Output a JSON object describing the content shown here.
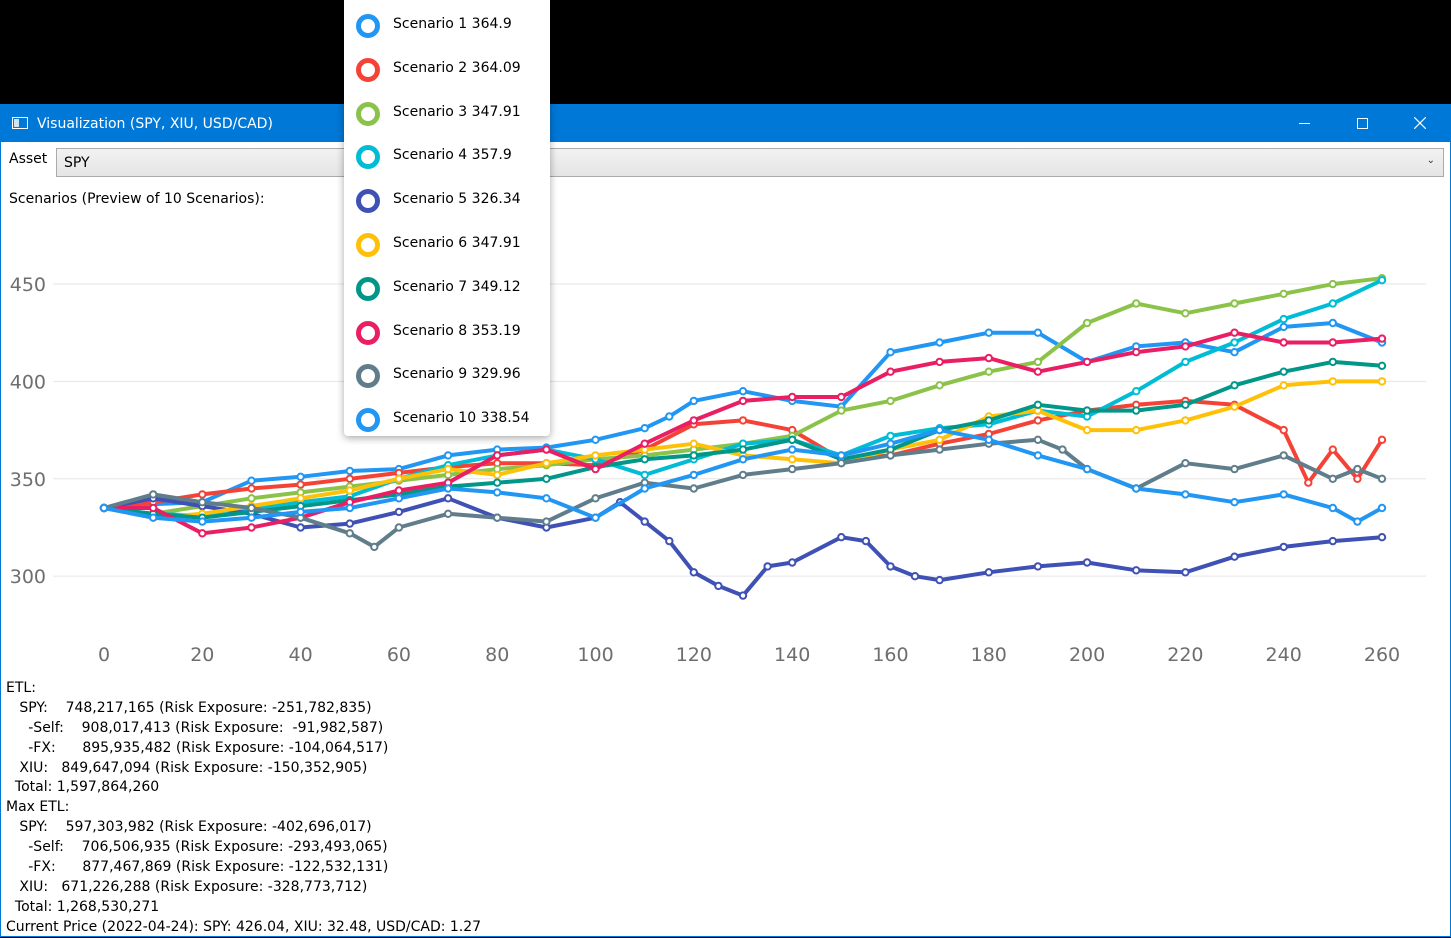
{
  "window": {
    "title": "Visualization (SPY, XIU, USD/CAD)"
  },
  "asset": {
    "label": "Asset",
    "value": "SPY"
  },
  "scenarios_label": "Scenarios (Preview of 10 Scenarios):",
  "legend": [
    {
      "label": "Scenario 1 364.9",
      "color": "#2196f3"
    },
    {
      "label": "Scenario 2 364.09",
      "color": "#f44336"
    },
    {
      "label": "Scenario 3 347.91",
      "color": "#8bc34a"
    },
    {
      "label": "Scenario 4 357.9",
      "color": "#00bcd4"
    },
    {
      "label": "Scenario 5 326.34",
      "color": "#3f51b5"
    },
    {
      "label": "Scenario 6 347.91",
      "color": "#ffc107"
    },
    {
      "label": "Scenario 7 349.12",
      "color": "#009688"
    },
    {
      "label": "Scenario 8 353.19",
      "color": "#e91e63"
    },
    {
      "label": "Scenario 9 329.96",
      "color": "#607d8b"
    },
    {
      "label": "Scenario 10 338.54",
      "color": "#2196f3"
    }
  ],
  "stats": [
    "ETL:",
    "   SPY:    748,217,165 (Risk Exposure: -251,782,835)",
    "     -Self:    908,017,413 (Risk Exposure:  -91,982,587)",
    "     -FX:      895,935,482 (Risk Exposure: -104,064,517)",
    "   XIU:   849,647,094 (Risk Exposure: -150,352,905)",
    "  Total: 1,597,864,260",
    "Max ETL:",
    "   SPY:    597,303,982 (Risk Exposure: -402,696,017)",
    "     -Self:    706,506,935 (Risk Exposure: -293,493,065)",
    "     -FX:      877,467,869 (Risk Exposure: -122,532,131)",
    "   XIU:   671,226,288 (Risk Exposure: -328,773,712)",
    "  Total: 1,268,530,271",
    "Current Price (2022-04-24): SPY: 426.04, XIU: 32.48, USD/CAD: 1.27"
  ],
  "chart_data": {
    "type": "line",
    "x_ticks": [
      0,
      20,
      40,
      60,
      80,
      100,
      120,
      140,
      160,
      180,
      200,
      220,
      240,
      260
    ],
    "y_ticks": [
      300,
      350,
      400,
      450
    ],
    "xlim": [
      0,
      260
    ],
    "ylim": [
      278,
      468
    ],
    "grid": "horizontal",
    "series": [
      {
        "name": "Scenario 1 364.9",
        "color": "#2196f3",
        "x": [
          0,
          10,
          20,
          30,
          40,
          50,
          60,
          70,
          80,
          90,
          100,
          110,
          115,
          120,
          130,
          140,
          150,
          160,
          170,
          180,
          190,
          200,
          210,
          220,
          230,
          240,
          250,
          260
        ],
        "values": [
          335,
          337,
          338,
          349,
          351,
          354,
          355,
          362,
          365,
          366,
          370,
          376,
          382,
          390,
          395,
          390,
          387,
          415,
          420,
          425,
          425,
          410,
          418,
          420,
          415,
          428,
          430,
          420
        ]
      },
      {
        "name": "Scenario 2 364.09",
        "color": "#f44336",
        "x": [
          0,
          10,
          20,
          30,
          40,
          50,
          60,
          70,
          80,
          90,
          100,
          110,
          120,
          130,
          140,
          150,
          160,
          170,
          180,
          190,
          200,
          210,
          220,
          230,
          240,
          245,
          250,
          255,
          260
        ],
        "values": [
          335,
          338,
          342,
          345,
          347,
          350,
          353,
          356,
          358,
          358,
          357,
          365,
          378,
          380,
          375,
          360,
          362,
          368,
          373,
          380,
          385,
          388,
          390,
          388,
          375,
          348,
          365,
          350,
          370
        ]
      },
      {
        "name": "Scenario 3 347.91",
        "color": "#8bc34a",
        "x": [
          0,
          10,
          20,
          30,
          40,
          50,
          60,
          70,
          80,
          90,
          100,
          110,
          120,
          130,
          140,
          150,
          160,
          170,
          180,
          190,
          200,
          210,
          220,
          230,
          240,
          250,
          260
        ],
        "values": [
          335,
          332,
          336,
          340,
          343,
          346,
          349,
          352,
          355,
          357,
          360,
          362,
          365,
          368,
          372,
          385,
          390,
          398,
          405,
          410,
          430,
          440,
          435,
          440,
          445,
          450,
          453
        ]
      },
      {
        "name": "Scenario 4 357.9",
        "color": "#00bcd4",
        "x": [
          0,
          10,
          20,
          30,
          40,
          50,
          60,
          70,
          80,
          90,
          100,
          110,
          120,
          130,
          140,
          150,
          160,
          170,
          180,
          190,
          200,
          210,
          220,
          230,
          240,
          250,
          260
        ],
        "values": [
          335,
          332,
          331,
          335,
          338,
          341,
          350,
          357,
          362,
          365,
          360,
          352,
          360,
          368,
          370,
          362,
          372,
          376,
          378,
          385,
          382,
          395,
          410,
          420,
          432,
          440,
          452
        ]
      },
      {
        "name": "Scenario 5 326.34",
        "color": "#3f51b5",
        "x": [
          0,
          10,
          20,
          30,
          40,
          50,
          60,
          70,
          80,
          90,
          100,
          105,
          110,
          115,
          120,
          125,
          130,
          135,
          140,
          150,
          155,
          160,
          165,
          170,
          180,
          190,
          200,
          210,
          220,
          230,
          240,
          250,
          260
        ],
        "values": [
          335,
          340,
          336,
          332,
          325,
          327,
          333,
          340,
          330,
          325,
          330,
          338,
          328,
          318,
          302,
          295,
          290,
          305,
          307,
          320,
          318,
          305,
          300,
          298,
          302,
          305,
          307,
          303,
          302,
          310,
          315,
          318,
          320
        ]
      },
      {
        "name": "Scenario 6 347.91",
        "color": "#ffc107",
        "x": [
          0,
          10,
          20,
          30,
          40,
          50,
          60,
          70,
          80,
          90,
          100,
          110,
          120,
          130,
          140,
          150,
          160,
          170,
          180,
          190,
          200,
          210,
          220,
          230,
          240,
          250,
          260
        ],
        "values": [
          335,
          330,
          332,
          336,
          340,
          344,
          350,
          355,
          352,
          358,
          362,
          365,
          368,
          362,
          360,
          358,
          365,
          370,
          382,
          385,
          375,
          375,
          380,
          387,
          398,
          400,
          400
        ]
      },
      {
        "name": "Scenario 7 349.12",
        "color": "#009688",
        "x": [
          0,
          10,
          20,
          30,
          40,
          50,
          60,
          70,
          80,
          90,
          100,
          110,
          120,
          130,
          140,
          150,
          160,
          170,
          180,
          190,
          200,
          210,
          220,
          230,
          240,
          250,
          260
        ],
        "values": [
          335,
          332,
          330,
          333,
          336,
          339,
          342,
          346,
          348,
          350,
          356,
          360,
          362,
          365,
          370,
          360,
          365,
          375,
          380,
          388,
          385,
          385,
          388,
          398,
          405,
          410,
          408
        ]
      },
      {
        "name": "Scenario 8 353.19",
        "color": "#e91e63",
        "x": [
          0,
          10,
          20,
          30,
          40,
          50,
          60,
          70,
          80,
          90,
          100,
          110,
          120,
          130,
          140,
          150,
          160,
          170,
          180,
          190,
          200,
          210,
          220,
          230,
          240,
          250,
          260
        ],
        "values": [
          335,
          335,
          322,
          325,
          330,
          338,
          344,
          348,
          362,
          365,
          355,
          368,
          380,
          390,
          392,
          392,
          405,
          410,
          412,
          405,
          410,
          415,
          418,
          425,
          420,
          420,
          422
        ]
      },
      {
        "name": "Scenario 9 329.96",
        "color": "#607d8b",
        "x": [
          0,
          10,
          20,
          30,
          40,
          50,
          55,
          60,
          70,
          80,
          90,
          100,
          110,
          120,
          130,
          140,
          150,
          160,
          170,
          180,
          190,
          195,
          200,
          210,
          220,
          230,
          240,
          250,
          255,
          260
        ],
        "values": [
          335,
          342,
          338,
          335,
          330,
          322,
          315,
          325,
          332,
          330,
          328,
          340,
          348,
          345,
          352,
          355,
          358,
          362,
          365,
          368,
          370,
          365,
          355,
          345,
          358,
          355,
          362,
          350,
          355,
          350
        ]
      },
      {
        "name": "Scenario 10 338.54",
        "color": "#2196f3",
        "x": [
          0,
          10,
          20,
          30,
          40,
          50,
          60,
          70,
          80,
          90,
          100,
          110,
          120,
          130,
          140,
          150,
          160,
          170,
          180,
          190,
          200,
          210,
          220,
          230,
          240,
          250,
          255,
          260
        ],
        "values": [
          335,
          330,
          328,
          330,
          333,
          335,
          340,
          345,
          343,
          340,
          330,
          345,
          352,
          360,
          365,
          362,
          368,
          375,
          370,
          362,
          355,
          345,
          342,
          338,
          342,
          335,
          328,
          335
        ]
      }
    ]
  }
}
